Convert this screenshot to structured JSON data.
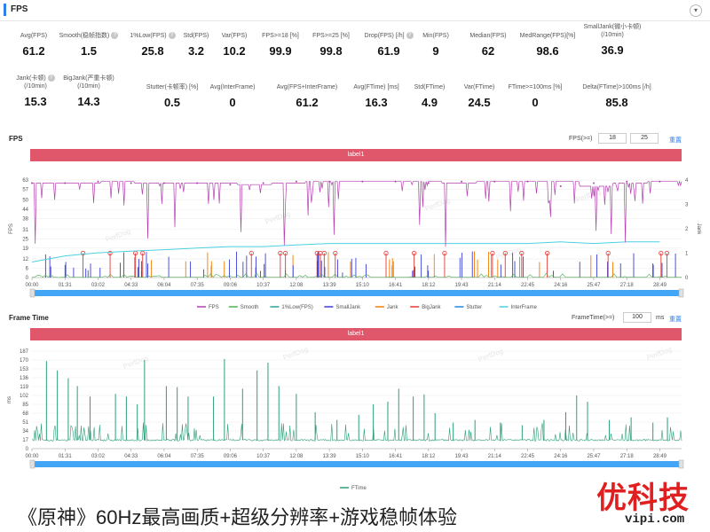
{
  "header": {
    "title": "FPS"
  },
  "stats": [
    {
      "label": "Avg(FPS)",
      "value": "61.2",
      "help": false
    },
    {
      "label": "Smooth(稳帧指数)",
      "value": "1.5",
      "help": true
    },
    {
      "label": "1%Low(FPS)",
      "value": "25.8",
      "help": true
    },
    {
      "label": "Std(FPS)",
      "value": "3.2",
      "help": false
    },
    {
      "label": "Var(FPS)",
      "value": "10.2",
      "help": false
    },
    {
      "label": "FPS>=18 [%]",
      "value": "99.9",
      "help": false
    },
    {
      "label": "FPS>=25 [%]",
      "value": "99.8",
      "help": false
    },
    {
      "label": "Drop(FPS) [/h]",
      "value": "61.9",
      "help": true
    },
    {
      "label": "Min(FPS)",
      "value": "9",
      "help": false
    },
    {
      "label": "Median(FPS)",
      "value": "62",
      "help": false
    },
    {
      "label": "MedRange(FPS)[%]",
      "value": "98.6",
      "help": false
    },
    {
      "label": "SmallJank(微小卡顿)\n(/10min)",
      "value": "36.9",
      "help": false
    },
    {
      "label": "Jank(卡顿)\n(/10min)",
      "value": "15.3",
      "help": true
    },
    {
      "label": "BigJank(严重卡顿)\n(/10min)",
      "value": "14.3",
      "help": false
    },
    {
      "label": "Stutter(卡顿率) [%]",
      "value": "0.5",
      "help": false
    },
    {
      "label": "Avg(InterFrame)",
      "value": "0",
      "help": false
    },
    {
      "label": "Avg(FPS+InterFrame)",
      "value": "61.2",
      "help": false
    },
    {
      "label": "Avg(FTime) [ms]",
      "value": "16.3",
      "help": false
    },
    {
      "label": "Std(FTime)",
      "value": "4.9",
      "help": false
    },
    {
      "label": "Var(FTime)",
      "value": "24.5",
      "help": false
    },
    {
      "label": "FTime>=100ms [%]",
      "value": "0",
      "help": false
    },
    {
      "label": "Delta(FTime)>100ms [/h]",
      "value": "85.8",
      "help": false
    }
  ],
  "fps_section": {
    "title": "FPS",
    "threshold_label": "FPS(>=)",
    "threshold_1": "18",
    "threshold_2": "25",
    "reset": "重置",
    "label_bar": "label1",
    "y_axis_label": "FPS",
    "y2_axis_label": "Jank"
  },
  "ftime_section": {
    "title": "Frame Time",
    "threshold_label": "FrameTime(>=)",
    "threshold": "100",
    "unit": "ms",
    "reset": "重置",
    "label_bar": "label1",
    "y_axis_label": "ms"
  },
  "watermark": "PerfDog",
  "footer": {
    "banner": "《原神》60Hz最高画质+超级分辨率+游戏稳帧体验",
    "logo_cn": "优科技",
    "logo_en": "vipi.com"
  },
  "colors": {
    "fps": "#b43fb0",
    "smooth": "#4caf50",
    "low1": "#26a69a",
    "smalljank": "#3b3fd8",
    "jank": "#f57c00",
    "bigjank": "#e53935",
    "stutter": "#1e88e5",
    "interframe": "#4dd0e1",
    "ftime": "#2e9e7a",
    "labelbar": "#e0566a",
    "scrollbar": "#42a5f5"
  },
  "chart_data": [
    {
      "type": "line",
      "title": "FPS",
      "ylabel": "FPS",
      "y2label": "Jank",
      "ylim": [
        0,
        63
      ],
      "y_ticks": [
        0,
        6,
        12,
        19,
        25,
        31,
        38,
        44,
        50,
        57,
        63
      ],
      "y2lim": [
        0,
        4
      ],
      "y2_ticks": [
        0,
        1,
        2,
        3,
        4
      ],
      "x_ticks": [
        "00:00",
        "01:31",
        "03:02",
        "04:33",
        "06:04",
        "07:35",
        "09:06",
        "10:37",
        "12:08",
        "13:39",
        "15:10",
        "16:41",
        "18:12",
        "19:43",
        "21:14",
        "22:45",
        "24:16",
        "25:47",
        "27:18",
        "28:49"
      ],
      "legend": [
        "FPS",
        "Smooth",
        "1%Low(FPS)",
        "SmallJank",
        "Jank",
        "BigJank",
        "Stutter",
        "InterFrame"
      ],
      "legend_position": "bottom",
      "series": [
        {
          "name": "FPS",
          "x": [
            "00:00",
            "01:31",
            "03:02",
            "04:33",
            "06:04",
            "07:35",
            "09:06",
            "10:37",
            "12:08",
            "13:39",
            "15:10",
            "16:41",
            "18:12",
            "19:43",
            "21:14",
            "22:45",
            "24:16",
            "25:47",
            "27:18",
            "28:49"
          ],
          "values": [
            61,
            61,
            62,
            61,
            61,
            61,
            60,
            61,
            62,
            62,
            62,
            62,
            61,
            62,
            62,
            62,
            59,
            61,
            62,
            62
          ]
        },
        {
          "name": "1%Low(FPS)",
          "x": [
            "00:00",
            "01:31",
            "03:02",
            "04:33",
            "06:04",
            "07:35",
            "09:06",
            "10:37",
            "12:08",
            "13:39",
            "15:10",
            "16:41",
            "18:12",
            "19:43",
            "21:14",
            "22:45",
            "24:16",
            "25:47",
            "27:18",
            "28:49"
          ],
          "values": [
            10,
            14,
            16,
            17,
            18,
            19,
            20,
            20,
            21,
            22,
            22,
            22,
            22,
            22,
            22,
            22,
            23,
            22,
            23,
            23
          ]
        }
      ]
    },
    {
      "type": "line",
      "title": "Frame Time",
      "ylabel": "ms",
      "ylim": [
        0,
        187
      ],
      "y_ticks": [
        0,
        17,
        34,
        51,
        68,
        85,
        102,
        119,
        136,
        153,
        170,
        187
      ],
      "x_ticks": [
        "00:00",
        "01:31",
        "03:02",
        "04:33",
        "06:04",
        "07:35",
        "09:06",
        "10:37",
        "12:08",
        "13:39",
        "15:10",
        "16:41",
        "18:12",
        "19:43",
        "21:14",
        "22:45",
        "24:16",
        "25:47",
        "27:18",
        "28:49"
      ],
      "legend": [
        "FTime"
      ],
      "legend_position": "bottom",
      "series": [
        {
          "name": "FTime",
          "baseline": 16.3,
          "spikes": [
            {
              "x": "00:40",
              "y": 168
            },
            {
              "x": "01:10",
              "y": 150
            },
            {
              "x": "01:40",
              "y": 135
            },
            {
              "x": "02:05",
              "y": 120
            },
            {
              "x": "02:40",
              "y": 100
            },
            {
              "x": "03:50",
              "y": 105
            },
            {
              "x": "04:20",
              "y": 100
            },
            {
              "x": "04:50",
              "y": 85
            },
            {
              "x": "05:10",
              "y": 170
            },
            {
              "x": "06:10",
              "y": 120
            },
            {
              "x": "06:40",
              "y": 118
            },
            {
              "x": "07:10",
              "y": 100
            },
            {
              "x": "08:20",
              "y": 100
            },
            {
              "x": "08:50",
              "y": 172
            },
            {
              "x": "09:40",
              "y": 115
            },
            {
              "x": "10:20",
              "y": 150
            },
            {
              "x": "10:50",
              "y": 165
            },
            {
              "x": "11:20",
              "y": 120
            },
            {
              "x": "12:08",
              "y": 105
            },
            {
              "x": "13:00",
              "y": 70
            },
            {
              "x": "14:00",
              "y": 55
            },
            {
              "x": "15:00",
              "y": 65
            },
            {
              "x": "15:40",
              "y": 85
            },
            {
              "x": "16:20",
              "y": 90
            },
            {
              "x": "16:50",
              "y": 115
            },
            {
              "x": "17:30",
              "y": 100
            },
            {
              "x": "18:00",
              "y": 104
            },
            {
              "x": "18:30",
              "y": 68
            },
            {
              "x": "19:20",
              "y": 50
            },
            {
              "x": "20:20",
              "y": 55
            },
            {
              "x": "21:30",
              "y": 50
            },
            {
              "x": "22:30",
              "y": 45
            },
            {
              "x": "23:30",
              "y": 55
            },
            {
              "x": "24:30",
              "y": 70
            },
            {
              "x": "25:00",
              "y": 102
            },
            {
              "x": "25:30",
              "y": 90
            },
            {
              "x": "26:30",
              "y": 55
            },
            {
              "x": "27:30",
              "y": 60
            },
            {
              "x": "28:30",
              "y": 50
            },
            {
              "x": "29:10",
              "y": 60
            }
          ]
        }
      ]
    }
  ]
}
